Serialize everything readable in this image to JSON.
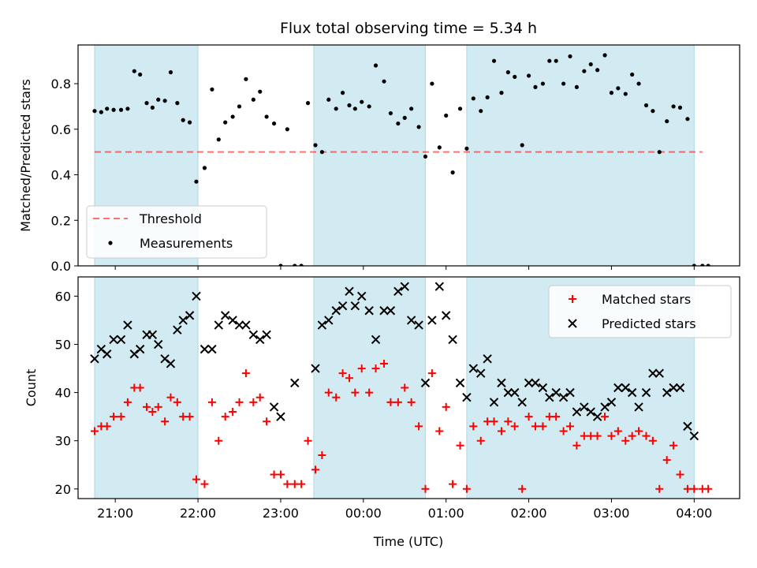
{
  "title": "Flux total observing time = 5.34 h",
  "xlabel": "Time (UTC)",
  "colors": {
    "span_fill": "#add8e6",
    "threshold": "#ff0000",
    "measurements": "#000000",
    "matched": "#ff0000",
    "predicted": "#000000"
  },
  "chart_data": [
    {
      "type": "scatter",
      "ylabel": "Matched/Predicted stars",
      "x_axis_unit": "hours since 20:00 UTC",
      "xlim": [
        19.55,
        27.55
      ],
      "ylim": [
        0.0,
        0.97
      ],
      "xticks": [
        {
          "x": 20.0,
          "label": "21:00"
        },
        {
          "x": 21.0,
          "label": "22:00"
        },
        {
          "x": 22.0,
          "label": "23:00"
        },
        {
          "x": 23.0,
          "label": "00:00"
        },
        {
          "x": 24.0,
          "label": "01:00"
        },
        {
          "x": 25.0,
          "label": "02:00"
        },
        {
          "x": 26.0,
          "label": "03:00"
        },
        {
          "x": 27.0,
          "label": "04:00"
        }
      ],
      "yticks": [
        {
          "y": 0.0,
          "label": "0.0"
        },
        {
          "y": 0.2,
          "label": "0.2"
        },
        {
          "y": 0.4,
          "label": "0.4"
        },
        {
          "y": 0.6,
          "label": "0.6"
        },
        {
          "y": 0.8,
          "label": "0.8"
        }
      ],
      "spans": [
        [
          19.75,
          21.0
        ],
        [
          22.4,
          23.75
        ],
        [
          24.25,
          27.0
        ]
      ],
      "threshold": {
        "y": 0.5,
        "x": [
          19.75,
          27.1
        ],
        "name": "Threshold"
      },
      "legend": [
        "Threshold",
        "Measurements"
      ],
      "legend_position": "lower-left",
      "series": [
        {
          "name": "Measurements",
          "x": [
            19.75,
            19.83,
            19.9,
            19.98,
            20.07,
            20.15,
            20.23,
            20.3,
            20.38,
            20.45,
            20.52,
            20.6,
            20.67,
            20.75,
            20.82,
            20.9,
            20.98,
            21.08,
            21.17,
            21.25,
            21.33,
            21.42,
            21.5,
            21.58,
            21.67,
            21.75,
            21.83,
            21.92,
            22.0,
            22.08,
            22.17,
            22.25,
            22.33,
            22.42,
            22.5,
            22.58,
            22.67,
            22.75,
            22.83,
            22.9,
            22.98,
            23.07,
            23.15,
            23.25,
            23.33,
            23.42,
            23.5,
            23.58,
            23.67,
            23.75,
            23.83,
            23.92,
            24.0,
            24.08,
            24.17,
            24.25,
            24.33,
            24.42,
            24.5,
            24.58,
            24.67,
            24.75,
            24.83,
            24.92,
            25.0,
            25.08,
            25.17,
            25.25,
            25.33,
            25.42,
            25.5,
            25.58,
            25.67,
            25.75,
            25.83,
            25.92,
            26.0,
            26.08,
            26.17,
            26.25,
            26.33,
            26.42,
            26.5,
            26.58,
            26.67,
            26.75,
            26.83,
            26.92,
            27.0,
            27.1,
            27.17
          ],
          "y": [
            0.68,
            0.675,
            0.69,
            0.685,
            0.685,
            0.69,
            0.855,
            0.84,
            0.715,
            0.695,
            0.73,
            0.725,
            0.85,
            0.715,
            0.64,
            0.63,
            0.37,
            0.43,
            0.775,
            0.555,
            0.63,
            0.655,
            0.7,
            0.82,
            0.73,
            0.765,
            0.655,
            0.625,
            0.0,
            0.6,
            0.0,
            0.0,
            0.715,
            0.53,
            0.5,
            0.73,
            0.69,
            0.76,
            0.705,
            0.69,
            0.72,
            0.7,
            0.88,
            0.81,
            0.67,
            0.625,
            0.65,
            0.69,
            0.61,
            0.48,
            0.8,
            0.52,
            0.66,
            0.41,
            0.69,
            0.515,
            0.735,
            0.68,
            0.74,
            0.9,
            0.76,
            0.85,
            0.83,
            0.53,
            0.835,
            0.785,
            0.8,
            0.9,
            0.9,
            0.8,
            0.92,
            0.785,
            0.855,
            0.885,
            0.86,
            0.925,
            0.76,
            0.78,
            0.755,
            0.84,
            0.8,
            0.705,
            0.68,
            0.5,
            0.635,
            0.7,
            0.695,
            0.645,
            0.0,
            0.0,
            0.0
          ]
        }
      ]
    },
    {
      "type": "scatter",
      "ylabel": "Count",
      "x_axis_unit": "hours since 20:00 UTC",
      "xlim": [
        19.55,
        27.55
      ],
      "ylim": [
        18,
        64
      ],
      "xticks": [
        {
          "x": 20.0,
          "label": "21:00"
        },
        {
          "x": 21.0,
          "label": "22:00"
        },
        {
          "x": 22.0,
          "label": "23:00"
        },
        {
          "x": 23.0,
          "label": "00:00"
        },
        {
          "x": 24.0,
          "label": "01:00"
        },
        {
          "x": 25.0,
          "label": "02:00"
        },
        {
          "x": 26.0,
          "label": "03:00"
        },
        {
          "x": 27.0,
          "label": "04:00"
        }
      ],
      "yticks": [
        {
          "y": 20,
          "label": "20"
        },
        {
          "y": 30,
          "label": "30"
        },
        {
          "y": 40,
          "label": "40"
        },
        {
          "y": 50,
          "label": "50"
        },
        {
          "y": 60,
          "label": "60"
        }
      ],
      "spans": [
        [
          19.75,
          21.0
        ],
        [
          22.4,
          23.75
        ],
        [
          24.25,
          27.0
        ]
      ],
      "legend": [
        "Matched stars",
        "Predicted stars"
      ],
      "legend_position": "upper-right",
      "series": [
        {
          "name": "Matched stars",
          "marker": "plus",
          "x": [
            19.75,
            19.83,
            19.9,
            19.98,
            20.07,
            20.15,
            20.23,
            20.3,
            20.38,
            20.45,
            20.52,
            20.6,
            20.67,
            20.75,
            20.82,
            20.9,
            20.98,
            21.08,
            21.17,
            21.25,
            21.33,
            21.42,
            21.5,
            21.58,
            21.67,
            21.75,
            21.83,
            21.92,
            22.0,
            22.08,
            22.17,
            22.25,
            22.33,
            22.42,
            22.5,
            22.58,
            22.67,
            22.75,
            22.83,
            22.9,
            22.98,
            23.07,
            23.15,
            23.25,
            23.33,
            23.42,
            23.5,
            23.58,
            23.67,
            23.75,
            23.83,
            23.92,
            24.0,
            24.08,
            24.17,
            24.25,
            24.33,
            24.42,
            24.5,
            24.58,
            24.67,
            24.75,
            24.83,
            24.92,
            25.0,
            25.08,
            25.17,
            25.25,
            25.33,
            25.42,
            25.5,
            25.58,
            25.67,
            25.75,
            25.83,
            25.92,
            26.0,
            26.08,
            26.17,
            26.25,
            26.33,
            26.42,
            26.5,
            26.58,
            26.67,
            26.75,
            26.83,
            26.92,
            27.0,
            27.1,
            27.17
          ],
          "y": [
            32,
            33,
            33,
            35,
            35,
            38,
            41,
            41,
            37,
            36,
            37,
            34,
            39,
            38,
            35,
            35,
            22,
            21,
            38,
            30,
            35,
            36,
            38,
            44,
            38,
            39,
            34,
            23,
            23,
            21,
            21,
            21,
            30,
            24,
            27,
            40,
            39,
            44,
            43,
            40,
            45,
            40,
            45,
            46,
            38,
            38,
            41,
            38,
            33,
            20,
            44,
            32,
            37,
            21,
            29,
            20,
            33,
            30,
            34,
            34,
            32,
            34,
            33,
            20,
            35,
            33,
            33,
            35,
            35,
            32,
            33,
            29,
            31,
            31,
            31,
            35,
            31,
            32,
            30,
            31,
            32,
            31,
            30,
            20,
            26,
            29,
            23,
            20,
            20,
            20,
            20
          ]
        },
        {
          "name": "Predicted stars",
          "marker": "x",
          "x": [
            19.75,
            19.83,
            19.9,
            19.98,
            20.07,
            20.15,
            20.23,
            20.3,
            20.38,
            20.45,
            20.52,
            20.6,
            20.67,
            20.75,
            20.82,
            20.9,
            20.98,
            21.08,
            21.17,
            21.25,
            21.33,
            21.42,
            21.5,
            21.58,
            21.67,
            21.75,
            21.83,
            21.92,
            22.0,
            22.17,
            22.42,
            22.5,
            22.58,
            22.67,
            22.75,
            22.83,
            22.9,
            22.98,
            23.07,
            23.15,
            23.25,
            23.33,
            23.42,
            23.5,
            23.58,
            23.67,
            23.75,
            23.83,
            23.92,
            24.0,
            24.08,
            24.17,
            24.25,
            24.33,
            24.42,
            24.5,
            24.58,
            24.67,
            24.75,
            24.83,
            24.92,
            25.0,
            25.08,
            25.17,
            25.25,
            25.33,
            25.42,
            25.5,
            25.58,
            25.67,
            25.75,
            25.83,
            25.92,
            26.0,
            26.08,
            26.17,
            26.25,
            26.33,
            26.42,
            26.5,
            26.58,
            26.67,
            26.75,
            26.83,
            26.92,
            27.0
          ],
          "y": [
            47,
            49,
            48,
            51,
            51,
            54,
            48,
            49,
            52,
            52,
            50,
            47,
            46,
            53,
            55,
            56,
            60,
            49,
            49,
            54,
            56,
            55,
            54,
            54,
            52,
            51,
            52,
            37,
            35,
            42,
            45,
            54,
            55,
            57,
            58,
            61,
            58,
            60,
            57,
            51,
            57,
            57,
            61,
            62,
            55,
            54,
            42,
            55,
            62,
            56,
            51,
            42,
            39,
            45,
            44,
            47,
            38,
            42,
            40,
            40,
            38,
            42,
            42,
            41,
            39,
            40,
            39,
            40,
            36,
            37,
            36,
            35,
            37,
            38,
            41,
            41,
            40,
            37,
            40,
            44,
            44,
            40,
            41,
            41,
            33,
            31
          ]
        }
      ]
    }
  ]
}
